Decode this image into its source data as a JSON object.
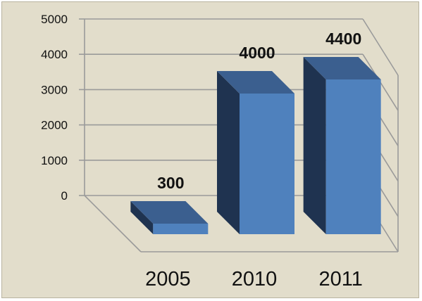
{
  "chart_data": {
    "type": "bar",
    "title": "",
    "xlabel": "",
    "ylabel": "",
    "categories": [
      "2005",
      "2010",
      "2011"
    ],
    "values": [
      300,
      4000,
      4400
    ],
    "data_labels": [
      "300",
      "4000",
      "4400"
    ],
    "ylim": [
      0,
      5000
    ],
    "yticks": [
      0,
      1000,
      2000,
      3000,
      4000,
      5000
    ],
    "ytick_labels": [
      "0",
      "1000",
      "2000",
      "3000",
      "4000",
      "5000"
    ],
    "grid": true,
    "legend": "none",
    "style": "3d",
    "colors": {
      "bar_front": "#4f81bd",
      "bar_top": "#3b5f8f",
      "bar_side": "#1f3350",
      "grid": "#9a9a9a",
      "background": "#e2ddcb"
    }
  }
}
